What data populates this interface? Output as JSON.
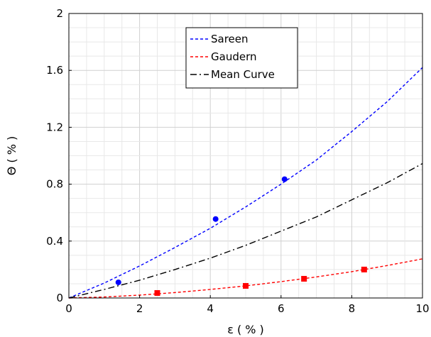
{
  "chart_data": {
    "type": "line",
    "xlabel": "ε ( % )",
    "ylabel": "Θ ( % )",
    "xlim": [
      0,
      10
    ],
    "ylim": [
      0,
      2
    ],
    "x_ticks": [
      "0",
      "2",
      "4",
      "6",
      "8",
      "10"
    ],
    "y_ticks": [
      "0",
      "0.4",
      "0.8",
      "1.2",
      "1.6",
      "2"
    ],
    "grid": true,
    "legend_position": "top-center",
    "series": [
      {
        "name": "Sareen",
        "color": "#0000ff",
        "line_style": "dashed",
        "marker": "circle",
        "points": [
          [
            1.4,
            0.11
          ],
          [
            4.15,
            0.555
          ],
          [
            6.1,
            0.835
          ]
        ],
        "fit": [
          [
            0,
            0
          ],
          [
            1,
            0.105
          ],
          [
            2,
            0.225
          ],
          [
            3,
            0.355
          ],
          [
            4,
            0.49
          ],
          [
            5,
            0.64
          ],
          [
            6,
            0.8
          ],
          [
            7,
            0.97
          ],
          [
            8,
            1.17
          ],
          [
            9,
            1.38
          ],
          [
            10,
            1.62
          ]
        ]
      },
      {
        "name": "Gaudern",
        "color": "#ff0000",
        "line_style": "dashed",
        "marker": "square",
        "points": [
          [
            2.5,
            0.035
          ],
          [
            5.0,
            0.085
          ],
          [
            6.65,
            0.135
          ],
          [
            8.35,
            0.2
          ]
        ],
        "fit": [
          [
            0,
            0
          ],
          [
            1,
            0.007
          ],
          [
            2,
            0.02
          ],
          [
            3,
            0.038
          ],
          [
            4,
            0.06
          ],
          [
            5,
            0.085
          ],
          [
            6,
            0.115
          ],
          [
            7,
            0.148
          ],
          [
            8,
            0.185
          ],
          [
            9,
            0.228
          ],
          [
            10,
            0.275
          ]
        ]
      },
      {
        "name": "Mean Curve",
        "color": "#000000",
        "line_style": "dash-dot",
        "marker": "none",
        "points": [],
        "fit": [
          [
            0,
            0
          ],
          [
            1,
            0.06
          ],
          [
            2,
            0.125
          ],
          [
            3,
            0.2
          ],
          [
            4,
            0.28
          ],
          [
            5,
            0.37
          ],
          [
            6,
            0.47
          ],
          [
            7,
            0.57
          ],
          [
            8,
            0.69
          ],
          [
            9,
            0.81
          ],
          [
            10,
            0.945
          ]
        ]
      }
    ]
  }
}
